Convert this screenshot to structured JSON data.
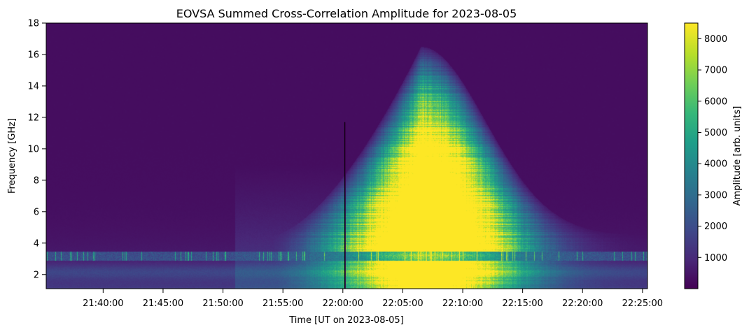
{
  "chart_data": {
    "type": "heatmap",
    "title": "EOVSA Summed Cross-Correlation Amplitude for 2023-08-05",
    "xlabel": "Time [UT on 2023-08-05]",
    "ylabel": "Frequency [GHz]",
    "x_range": [
      "21:35:15",
      "22:25:25"
    ],
    "y_range": [
      1.1,
      18.0
    ],
    "x_ticks": [
      "21:40:00",
      "21:45:00",
      "21:50:00",
      "21:55:00",
      "22:00:00",
      "22:05:00",
      "22:10:00",
      "22:15:00",
      "22:20:00",
      "22:25:00"
    ],
    "y_ticks": [
      2,
      4,
      6,
      8,
      10,
      12,
      14,
      16,
      18
    ],
    "colormap": "viridis",
    "colorbar": {
      "label": "Amplitude [arb. units]",
      "range": [
        0,
        8500
      ],
      "ticks": [
        1000,
        2000,
        3000,
        4000,
        5000,
        6000,
        7000,
        8000
      ]
    },
    "features": {
      "background_amplitude": 300,
      "flare_onset": "21:54:00",
      "flare_peak": "22:06:30",
      "flare_end": "22:16:00",
      "peak_frequency_range": [
        3.5,
        10.0
      ],
      "peak_amplitude": 8500,
      "rfi_band_ghz": [
        2.9,
        3.5
      ],
      "dropout_time": "22:00:10",
      "dropout_max_frequency": 11.7
    }
  }
}
